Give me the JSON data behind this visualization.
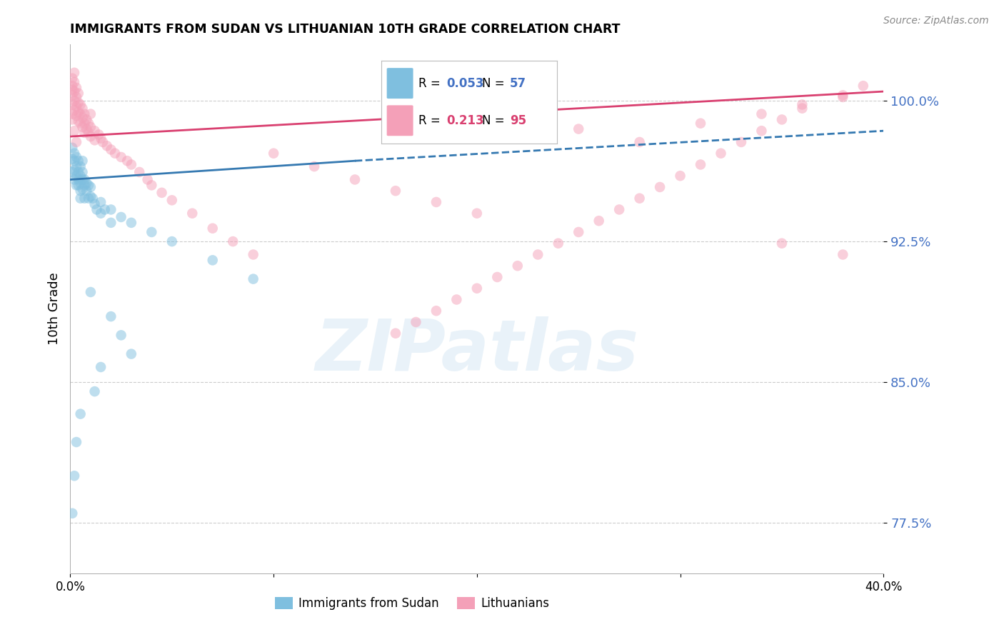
{
  "title": "IMMIGRANTS FROM SUDAN VS LITHUANIAN 10TH GRADE CORRELATION CHART",
  "source": "Source: ZipAtlas.com",
  "ylabel": "10th Grade",
  "yticks": [
    0.775,
    0.85,
    0.925,
    1.0
  ],
  "ytick_labels": [
    "77.5%",
    "85.0%",
    "92.5%",
    "100.0%"
  ],
  "xlim": [
    0.0,
    0.4
  ],
  "ylim": [
    0.748,
    1.03
  ],
  "legend_blue_r": "0.053",
  "legend_blue_n": "57",
  "legend_pink_r": "0.213",
  "legend_pink_n": "95",
  "legend_label_blue": "Immigrants from Sudan",
  "legend_label_pink": "Lithuanians",
  "blue_color": "#7fbfdf",
  "pink_color": "#f4a0b8",
  "blue_line_color": "#3579b1",
  "pink_line_color": "#d94070",
  "watermark_text": "ZIPatlas",
  "background_color": "#ffffff",
  "grid_color": "#cccccc",
  "axis_label_color": "#4472c4",
  "blue_scatter_x": [
    0.001,
    0.001,
    0.001,
    0.002,
    0.002,
    0.002,
    0.002,
    0.003,
    0.003,
    0.003,
    0.003,
    0.004,
    0.004,
    0.004,
    0.004,
    0.005,
    0.005,
    0.005,
    0.005,
    0.005,
    0.006,
    0.006,
    0.006,
    0.006,
    0.007,
    0.007,
    0.007,
    0.008,
    0.008,
    0.009,
    0.009,
    0.01,
    0.01,
    0.011,
    0.012,
    0.013,
    0.015,
    0.015,
    0.017,
    0.02,
    0.02,
    0.025,
    0.03,
    0.04,
    0.05,
    0.07,
    0.09,
    0.01,
    0.02,
    0.025,
    0.03,
    0.015,
    0.012,
    0.005,
    0.003,
    0.002,
    0.001
  ],
  "blue_scatter_y": [
    0.975,
    0.969,
    0.962,
    0.968,
    0.963,
    0.958,
    0.972,
    0.965,
    0.96,
    0.955,
    0.97,
    0.962,
    0.958,
    0.955,
    0.968,
    0.96,
    0.956,
    0.952,
    0.965,
    0.948,
    0.962,
    0.958,
    0.953,
    0.968,
    0.958,
    0.955,
    0.948,
    0.956,
    0.952,
    0.955,
    0.948,
    0.954,
    0.949,
    0.948,
    0.945,
    0.942,
    0.946,
    0.94,
    0.942,
    0.942,
    0.935,
    0.938,
    0.935,
    0.93,
    0.925,
    0.915,
    0.905,
    0.898,
    0.885,
    0.875,
    0.865,
    0.858,
    0.845,
    0.833,
    0.818,
    0.8,
    0.78
  ],
  "pink_scatter_x": [
    0.001,
    0.001,
    0.001,
    0.001,
    0.001,
    0.001,
    0.002,
    0.002,
    0.002,
    0.002,
    0.002,
    0.003,
    0.003,
    0.003,
    0.003,
    0.004,
    0.004,
    0.004,
    0.004,
    0.005,
    0.005,
    0.005,
    0.006,
    0.006,
    0.006,
    0.007,
    0.007,
    0.007,
    0.008,
    0.008,
    0.009,
    0.009,
    0.01,
    0.01,
    0.01,
    0.012,
    0.012,
    0.014,
    0.015,
    0.016,
    0.018,
    0.02,
    0.022,
    0.025,
    0.028,
    0.03,
    0.034,
    0.038,
    0.04,
    0.045,
    0.05,
    0.06,
    0.07,
    0.08,
    0.09,
    0.1,
    0.12,
    0.14,
    0.16,
    0.18,
    0.2,
    0.22,
    0.25,
    0.28,
    0.31,
    0.34,
    0.36,
    0.38,
    0.39,
    0.38,
    0.36,
    0.35,
    0.34,
    0.33,
    0.32,
    0.31,
    0.3,
    0.29,
    0.28,
    0.27,
    0.26,
    0.25,
    0.24,
    0.23,
    0.22,
    0.21,
    0.2,
    0.19,
    0.18,
    0.17,
    0.16,
    0.003,
    0.002,
    0.001,
    0.35,
    0.38
  ],
  "pink_scatter_y": [
    1.008,
    1.003,
    0.998,
    0.993,
    1.012,
    1.006,
    1.005,
    1.0,
    0.995,
    1.01,
    1.015,
    1.002,
    0.997,
    0.992,
    1.007,
    0.999,
    0.994,
    0.989,
    1.004,
    0.998,
    0.993,
    0.988,
    0.996,
    0.991,
    0.986,
    0.993,
    0.988,
    0.983,
    0.99,
    0.985,
    0.988,
    0.983,
    0.986,
    0.981,
    0.993,
    0.984,
    0.979,
    0.982,
    0.98,
    0.978,
    0.976,
    0.974,
    0.972,
    0.97,
    0.968,
    0.966,
    0.962,
    0.958,
    0.955,
    0.951,
    0.947,
    0.94,
    0.932,
    0.925,
    0.918,
    0.972,
    0.965,
    0.958,
    0.952,
    0.946,
    0.94,
    0.98,
    0.985,
    0.978,
    0.988,
    0.993,
    0.998,
    1.003,
    1.008,
    1.002,
    0.996,
    0.99,
    0.984,
    0.978,
    0.972,
    0.966,
    0.96,
    0.954,
    0.948,
    0.942,
    0.936,
    0.93,
    0.924,
    0.918,
    0.912,
    0.906,
    0.9,
    0.894,
    0.888,
    0.882,
    0.876,
    0.978,
    0.984,
    0.99,
    0.924,
    0.918
  ],
  "blue_trend": {
    "x": [
      0.0,
      0.14
    ],
    "y": [
      0.958,
      0.968
    ]
  },
  "blue_dash": {
    "x": [
      0.14,
      0.4
    ],
    "y": [
      0.968,
      0.984
    ]
  },
  "pink_trend": {
    "x": [
      0.0,
      0.4
    ],
    "y": [
      0.981,
      1.005
    ]
  }
}
